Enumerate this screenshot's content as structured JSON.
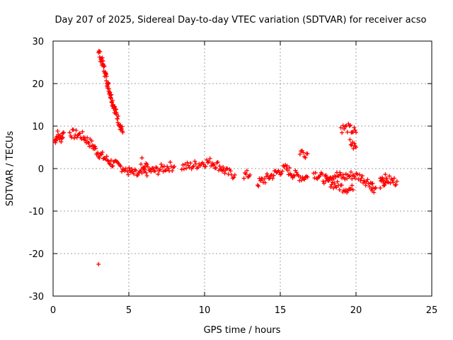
{
  "chart_data": {
    "type": "scatter",
    "title": "Day 207 of 2025, Sidereal Day-to-day VTEC variation (SDTVAR) for receiver acso",
    "xlabel": "GPS time / hours",
    "ylabel": "SDTVAR / TECUs",
    "xlim": [
      0,
      25
    ],
    "ylim": [
      -30,
      30
    ],
    "xticks": [
      0,
      5,
      10,
      15,
      20,
      25
    ],
    "yticks": [
      -30,
      -20,
      -10,
      0,
      10,
      20,
      30
    ],
    "xtick_labels": [
      "0",
      "5",
      "10",
      "15",
      "20",
      "25"
    ],
    "ytick_labels": [
      "-30",
      "-20",
      "-10",
      "0",
      "10",
      "20",
      "30"
    ],
    "grid": true,
    "marker": "+",
    "color": "#ff0000",
    "series": [
      {
        "name": "acso",
        "segments": [
          [
            [
              0.1,
              6.5
            ],
            [
              0.3,
              8.0
            ],
            [
              0.5,
              7.0
            ],
            [
              0.7,
              8.5
            ]
          ],
          [
            [
              1.1,
              8.5
            ],
            [
              1.4,
              8.0
            ],
            [
              1.7,
              8.0
            ],
            [
              2.0,
              7.5
            ],
            [
              2.3,
              6.5
            ],
            [
              2.6,
              5.5
            ],
            [
              2.9,
              4.0
            ],
            [
              3.2,
              3.0
            ],
            [
              3.6,
              2.0
            ],
            [
              4.0,
              1.0
            ],
            [
              4.4,
              0.5
            ],
            [
              4.8,
              0.0
            ]
          ],
          [
            [
              3.0,
              27.5
            ],
            [
              3.3,
              24.5
            ],
            [
              3.6,
              20.0
            ],
            [
              3.9,
              16.0
            ],
            [
              4.2,
              12.5
            ],
            [
              4.6,
              8.5
            ]
          ],
          [
            [
              4.9,
              -0.5
            ],
            [
              5.2,
              -1.0
            ],
            [
              5.6,
              -1.5
            ],
            [
              6.0,
              -1.0
            ],
            [
              6.4,
              -0.5
            ],
            [
              6.8,
              -0.5
            ],
            [
              7.2,
              0.0
            ],
            [
              7.6,
              0.5
            ],
            [
              8.0,
              0.5
            ]
          ],
          [
            [
              8.5,
              0.5
            ],
            [
              9.0,
              0.5
            ],
            [
              9.5,
              1.0
            ],
            [
              10.0,
              1.5
            ],
            [
              10.5,
              1.5
            ],
            [
              11.0,
              0.5
            ],
            [
              11.5,
              -1.0
            ],
            [
              12.0,
              -1.5
            ]
          ],
          [
            [
              12.6,
              -1.5
            ],
            [
              13.0,
              -1.5
            ]
          ],
          [
            [
              13.5,
              -3.5
            ],
            [
              14.0,
              -2.5
            ],
            [
              14.5,
              -1.5
            ],
            [
              15.0,
              -0.5
            ],
            [
              15.4,
              0.0
            ],
            [
              15.7,
              -1.0
            ],
            [
              16.0,
              -1.5
            ],
            [
              16.4,
              -2.0
            ],
            [
              16.8,
              -2.0
            ]
          ],
          [
            [
              16.3,
              4.0
            ],
            [
              16.8,
              3.5
            ]
          ],
          [
            [
              17.2,
              -1.0
            ],
            [
              17.7,
              -2.0
            ],
            [
              18.2,
              -3.0
            ],
            [
              18.7,
              -4.0
            ],
            [
              19.2,
              -4.5
            ],
            [
              19.8,
              -5.0
            ]
          ],
          [
            [
              18.0,
              -2.0
            ],
            [
              18.6,
              -1.5
            ],
            [
              19.2,
              -2.0
            ],
            [
              19.8,
              -1.5
            ],
            [
              20.3,
              -2.0
            ],
            [
              20.7,
              -3.0
            ],
            [
              21.1,
              -3.5
            ]
          ],
          [
            [
              19.0,
              9.5
            ],
            [
              19.5,
              9.5
            ],
            [
              20.0,
              8.5
            ]
          ],
          [
            [
              19.6,
              6.0
            ],
            [
              20.0,
              5.0
            ]
          ],
          [
            [
              21.0,
              -5.0
            ],
            [
              21.3,
              -4.5
            ]
          ],
          [
            [
              21.6,
              -2.0
            ],
            [
              22.0,
              -2.5
            ],
            [
              22.4,
              -3.0
            ],
            [
              22.7,
              -3.0
            ]
          ],
          [
            [
              21.6,
              -3.5
            ],
            [
              22.0,
              -2.5
            ]
          ],
          [
            [
              5.8,
              1.5
            ],
            [
              6.2,
              1.0
            ]
          ],
          [
            [
              3.0,
              -22.5
            ]
          ]
        ]
      }
    ]
  }
}
